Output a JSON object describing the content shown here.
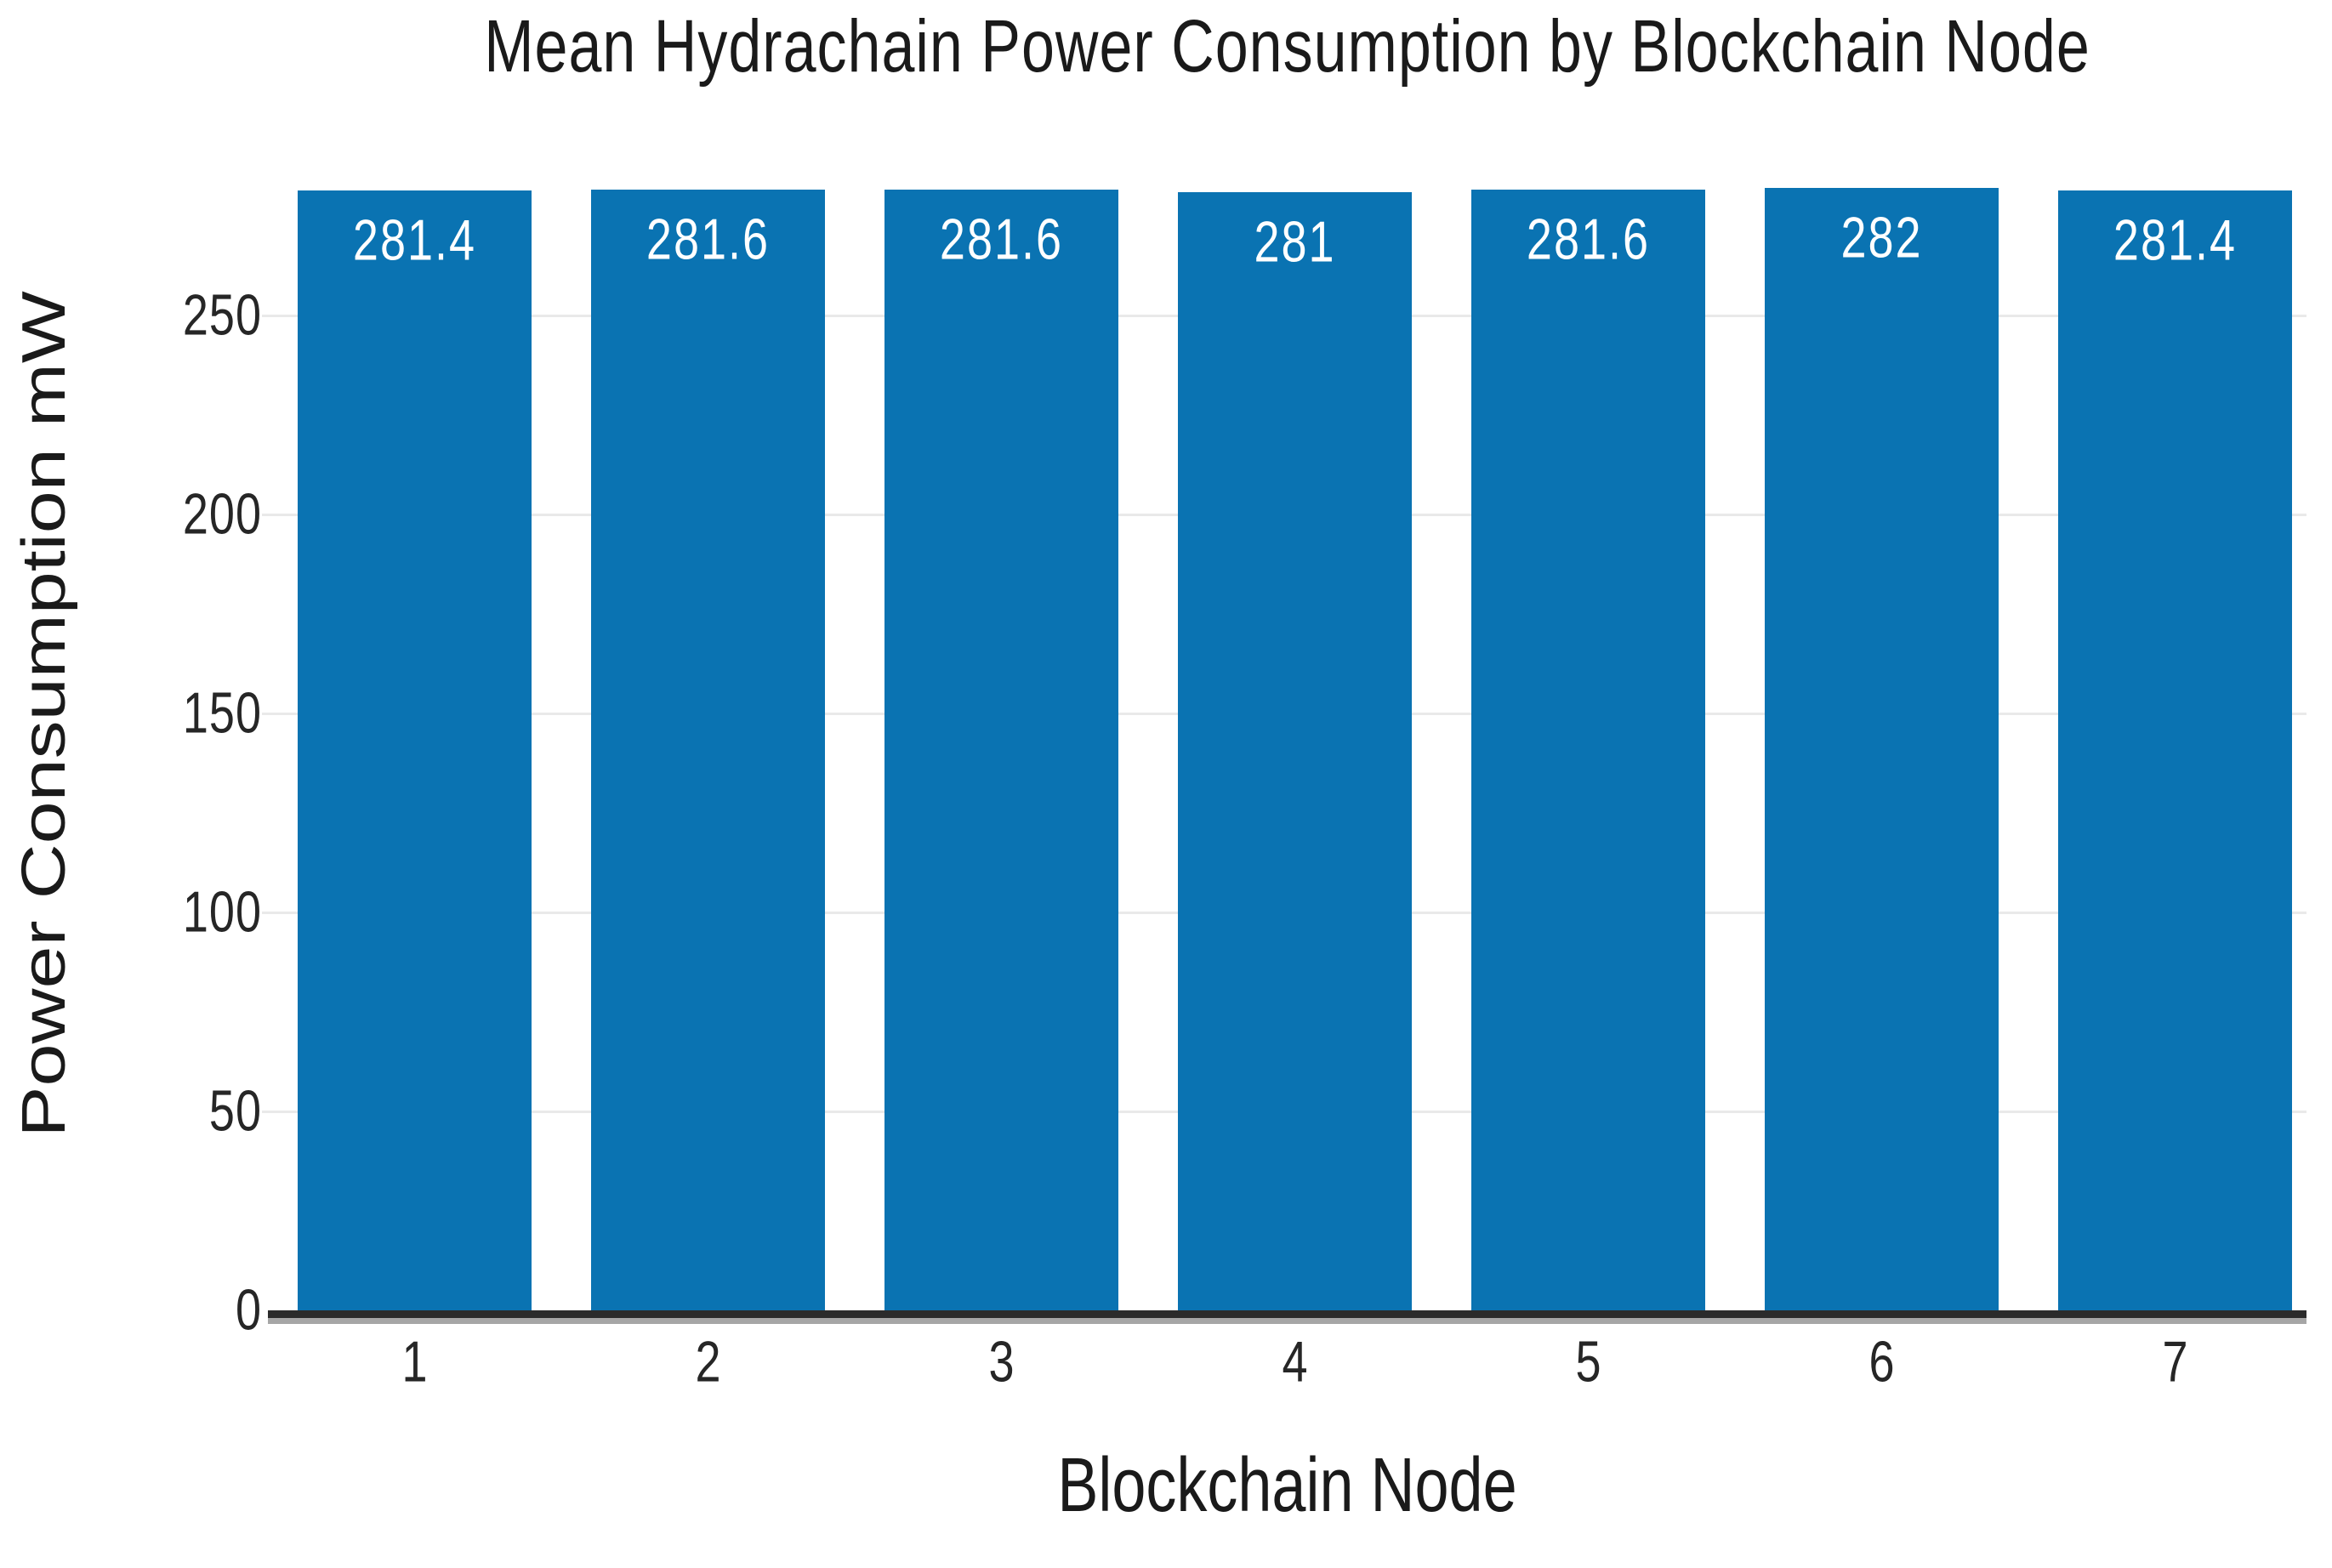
{
  "chart_data": {
    "type": "bar",
    "title": "Mean Hydrachain Power Consumption by Blockchain Node",
    "xlabel": "Blockchain Node",
    "ylabel": "Power Consumption mW",
    "categories": [
      "1",
      "2",
      "3",
      "4",
      "5",
      "6",
      "7"
    ],
    "values": [
      281.4,
      281.6,
      281.6,
      281,
      281.6,
      282,
      281.4
    ],
    "bar_value_labels": [
      "281.4",
      "281.6",
      "281.6",
      "281",
      "281.6",
      "282",
      "281.4"
    ],
    "yticks": [
      0,
      50,
      100,
      150,
      200,
      250
    ],
    "ylim": [
      0,
      283
    ],
    "grid": "horizontal-light",
    "legend_position": "none",
    "colors": {
      "bar": "#0a73b2",
      "bar_label_text": "#ffffff",
      "gridline": "#e9e9e9",
      "axis_line": "#2b2b2b",
      "axis_shadow": "#a6a6a6",
      "text": "#1a1a1a",
      "tick_text": "#262626",
      "background": "#ffffff"
    }
  }
}
